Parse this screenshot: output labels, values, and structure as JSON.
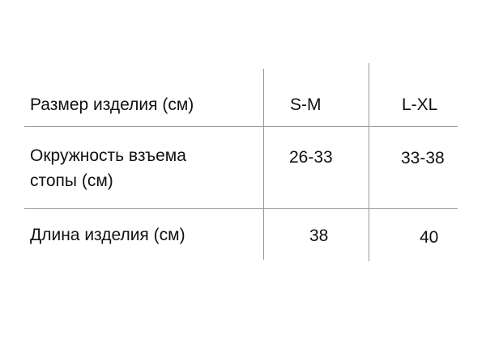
{
  "table": {
    "header": {
      "label": "Размер изделия (см)",
      "col1": "S-M",
      "col2": "L-XL"
    },
    "rows": [
      {
        "label_line1": "Окружность взъема",
        "label_line2": "стопы (см)",
        "col1": "26-33",
        "col2": "33-38"
      },
      {
        "label_line1": "Длина изделия (см)",
        "col1": "38",
        "col2": "40"
      }
    ]
  }
}
